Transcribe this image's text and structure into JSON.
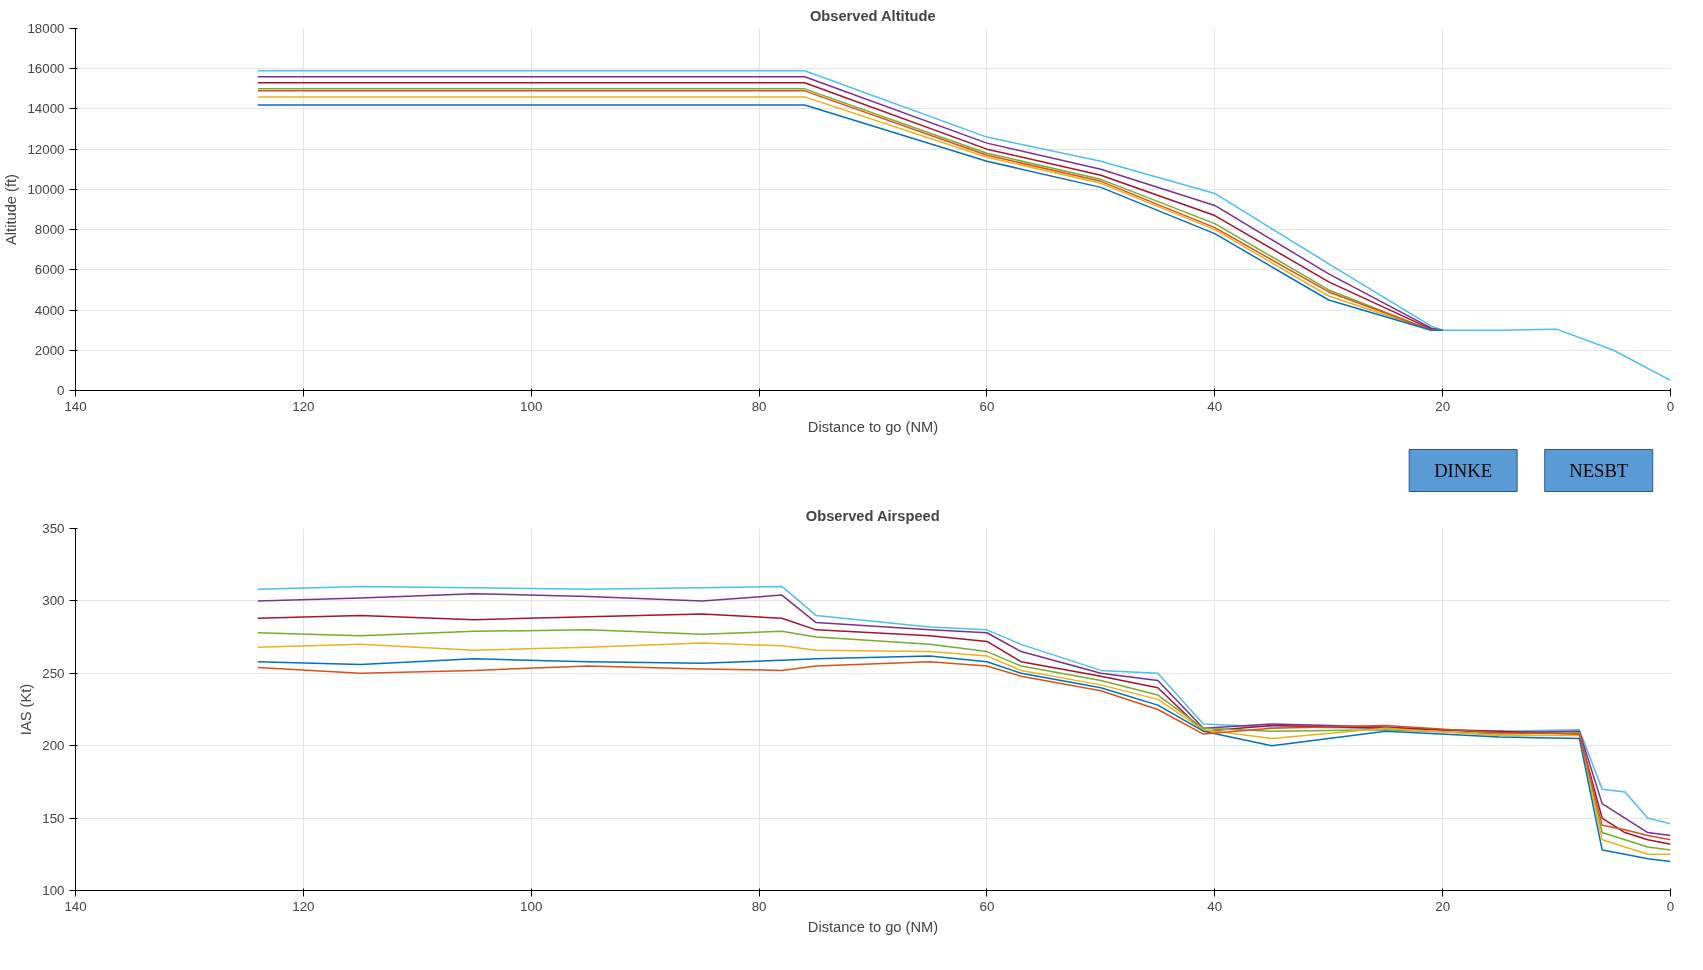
{
  "chart_data": [
    {
      "type": "line",
      "title": "Observed Altitude",
      "xlabel": "Distance to go (NM)",
      "ylabel": "Altitude (ft)",
      "xlim": [
        140,
        0
      ],
      "xticks": [
        0,
        20,
        40,
        60,
        80,
        100,
        120,
        140
      ],
      "ylim": [
        0,
        18000
      ],
      "yticks": [
        0,
        2000,
        4000,
        6000,
        8000,
        10000,
        12000,
        14000,
        16000,
        18000
      ],
      "grid": true,
      "x": [
        124,
        76,
        60,
        50,
        40,
        30,
        21,
        20,
        15,
        10,
        5,
        0
      ],
      "series": [
        {
          "color": "#4dbeee",
          "values": [
            15900,
            15900,
            12600,
            11400,
            9800,
            6300,
            3200,
            3000,
            3000,
            3050,
            2000,
            500
          ]
        },
        {
          "color": "#7e2f8e",
          "values": [
            15600,
            15600,
            12300,
            11000,
            9200,
            5800,
            3100,
            3000,
            null,
            null,
            null,
            null
          ]
        },
        {
          "color": "#a2142f",
          "values": [
            15300,
            15300,
            12000,
            10700,
            8700,
            5400,
            3050,
            3000,
            null,
            null,
            null,
            null
          ]
        },
        {
          "color": "#77ac30",
          "values": [
            15000,
            15000,
            11800,
            10500,
            8300,
            5000,
            3000,
            3000,
            null,
            null,
            null,
            null
          ]
        },
        {
          "color": "#edb120",
          "values": [
            14600,
            14600,
            11600,
            10300,
            8000,
            4700,
            3000,
            3000,
            null,
            null,
            null,
            null
          ]
        },
        {
          "color": "#d95319",
          "values": [
            14900,
            14900,
            11700,
            10400,
            8100,
            4900,
            3000,
            3000,
            null,
            null,
            null,
            null
          ]
        },
        {
          "color": "#0072bd",
          "values": [
            14200,
            14200,
            11400,
            10100,
            7800,
            4500,
            3000,
            3000,
            null,
            null,
            null,
            null
          ]
        }
      ],
      "annotations": [
        "DINKE",
        "NESBT"
      ]
    },
    {
      "type": "line",
      "title": "Observed Airspeed",
      "xlabel": "Distance to go (NM)",
      "ylabel": "IAS (Kt)",
      "xlim": [
        140,
        0
      ],
      "xticks": [
        0,
        20,
        40,
        60,
        80,
        100,
        120,
        140
      ],
      "ylim": [
        100,
        350
      ],
      "yticks": [
        100,
        150,
        200,
        250,
        300,
        350
      ],
      "grid": true,
      "x": [
        124,
        115,
        105,
        95,
        85,
        78,
        75,
        65,
        60,
        57,
        50,
        45,
        41,
        35,
        25,
        15,
        8,
        6,
        4,
        2,
        0
      ],
      "series": [
        {
          "color": "#4dbeee",
          "values": [
            308,
            310,
            309,
            308,
            309,
            310,
            290,
            282,
            280,
            270,
            252,
            250,
            215,
            213,
            212,
            210,
            211,
            170,
            168,
            150,
            146
          ]
        },
        {
          "color": "#7e2f8e",
          "values": [
            300,
            302,
            305,
            303,
            300,
            304,
            285,
            280,
            278,
            265,
            250,
            245,
            212,
            215,
            213,
            209,
            210,
            160,
            150,
            140,
            138
          ]
        },
        {
          "color": "#a2142f",
          "values": [
            288,
            290,
            287,
            289,
            291,
            288,
            280,
            276,
            272,
            258,
            248,
            240,
            210,
            214,
            212,
            210,
            208,
            150,
            140,
            135,
            132
          ]
        },
        {
          "color": "#77ac30",
          "values": [
            278,
            276,
            279,
            280,
            277,
            279,
            275,
            270,
            265,
            255,
            245,
            235,
            212,
            210,
            211,
            208,
            209,
            140,
            135,
            130,
            128
          ]
        },
        {
          "color": "#edb120",
          "values": [
            268,
            270,
            266,
            268,
            271,
            269,
            266,
            265,
            262,
            252,
            242,
            232,
            211,
            205,
            212,
            207,
            207,
            135,
            130,
            125,
            125
          ]
        },
        {
          "color": "#0072bd",
          "values": [
            258,
            256,
            260,
            258,
            257,
            259,
            260,
            262,
            258,
            250,
            240,
            228,
            210,
            200,
            210,
            206,
            205,
            128,
            125,
            122,
            120
          ]
        },
        {
          "color": "#d95319",
          "values": [
            254,
            250,
            252,
            255,
            253,
            252,
            255,
            258,
            255,
            248,
            238,
            225,
            208,
            212,
            214,
            209,
            208,
            145,
            142,
            138,
            135
          ]
        }
      ]
    }
  ]
}
